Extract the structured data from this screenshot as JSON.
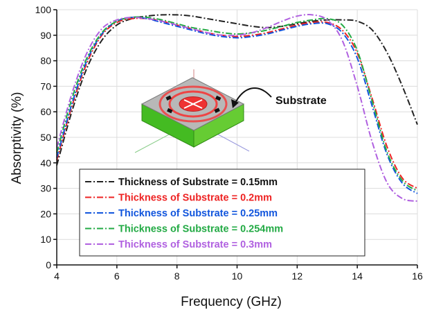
{
  "chart_data": {
    "type": "line",
    "xlabel": "Frequency (GHz)",
    "ylabel": "Absorptivity (%)",
    "xlim": [
      4,
      16
    ],
    "ylim": [
      0,
      100
    ],
    "xticks": [
      4,
      6,
      8,
      10,
      12,
      14,
      16
    ],
    "yticks": [
      0,
      10,
      20,
      30,
      40,
      50,
      60,
      70,
      80,
      90,
      100
    ],
    "grid": true,
    "legend_placement": "bottom-center",
    "annotation": "Substrate",
    "series": [
      {
        "name": "Thickness of Substrate = 0.15mm",
        "color": "#222222",
        "dash": "dashdot",
        "x": [
          4,
          4.5,
          5,
          5.5,
          6,
          6.5,
          7,
          7.5,
          8,
          8.5,
          9,
          9.5,
          10,
          10.5,
          11,
          11.5,
          12,
          12.5,
          13,
          13.5,
          14,
          14.5,
          15,
          15.5,
          16
        ],
        "y": [
          39,
          60,
          77,
          88,
          94,
          96.5,
          97.5,
          98,
          98,
          97.5,
          96.5,
          95.5,
          94.5,
          93.5,
          93,
          93.5,
          94.5,
          95.5,
          96,
          96,
          95.5,
          92,
          83,
          70,
          55
        ]
      },
      {
        "name": "Thickness of Substrate = 0.2mm",
        "color": "#ee2222",
        "dash": "dashdot",
        "x": [
          4,
          4.5,
          5,
          5.5,
          6,
          6.5,
          7,
          7.5,
          8,
          8.5,
          9,
          9.5,
          10,
          10.5,
          11,
          11.5,
          12,
          12.5,
          13,
          13.5,
          14,
          14.5,
          15,
          15.5,
          16
        ],
        "y": [
          41,
          62,
          79,
          90,
          95,
          96.5,
          96.5,
          95.5,
          94,
          92.5,
          91,
          90,
          89.5,
          90,
          91,
          92.5,
          94,
          95,
          95,
          92,
          83,
          65,
          46,
          34,
          30
        ]
      },
      {
        "name": "Thickness of Substrate = 0.25mm",
        "color": "#1155dd",
        "dash": "dashdot",
        "x": [
          4,
          4.5,
          5,
          5.5,
          6,
          6.5,
          7,
          7.5,
          8,
          8.5,
          9,
          9.5,
          10,
          10.5,
          11,
          11.5,
          12,
          12.5,
          13,
          13.5,
          14,
          14.5,
          15,
          15.5,
          16
        ],
        "y": [
          42,
          63,
          80,
          90.5,
          95.5,
          97,
          96.5,
          95,
          93.5,
          92,
          90.5,
          89.5,
          89,
          89.5,
          90.5,
          92,
          93.5,
          94.5,
          94.5,
          91,
          81,
          62,
          43,
          32,
          28
        ]
      },
      {
        "name": "Thickness of Substrate = 0.254mm",
        "color": "#22aa44",
        "dash": "dashdot",
        "x": [
          4,
          4.5,
          5,
          5.5,
          6,
          6.5,
          7,
          7.5,
          8,
          8.5,
          9,
          9.5,
          10,
          10.5,
          11,
          11.5,
          12,
          12.5,
          13,
          13.5,
          14,
          14.5,
          15,
          15.5,
          16
        ],
        "y": [
          44,
          65,
          81,
          91,
          95.5,
          97,
          97,
          96,
          94.5,
          93,
          92,
          91,
          90.5,
          91,
          92,
          93.5,
          95,
          96,
          96.5,
          94,
          84,
          64,
          44,
          33,
          29
        ]
      },
      {
        "name": "Thickness of Substrate = 0.3mm",
        "color": "#b060e0",
        "dash": "dashdot",
        "x": [
          4,
          4.5,
          5,
          5.5,
          6,
          6.5,
          7,
          7.5,
          8,
          8.5,
          9,
          9.5,
          10,
          10.5,
          11,
          11.5,
          12,
          12.5,
          13,
          13.5,
          14,
          14.5,
          15,
          15.5,
          16
        ],
        "y": [
          46,
          67,
          83,
          92.5,
          96,
          97,
          96.5,
          95.5,
          94,
          92.5,
          91,
          90,
          90,
          91,
          93,
          95.5,
          97.5,
          98,
          96,
          88,
          70,
          48,
          32,
          26,
          25
        ]
      }
    ]
  }
}
